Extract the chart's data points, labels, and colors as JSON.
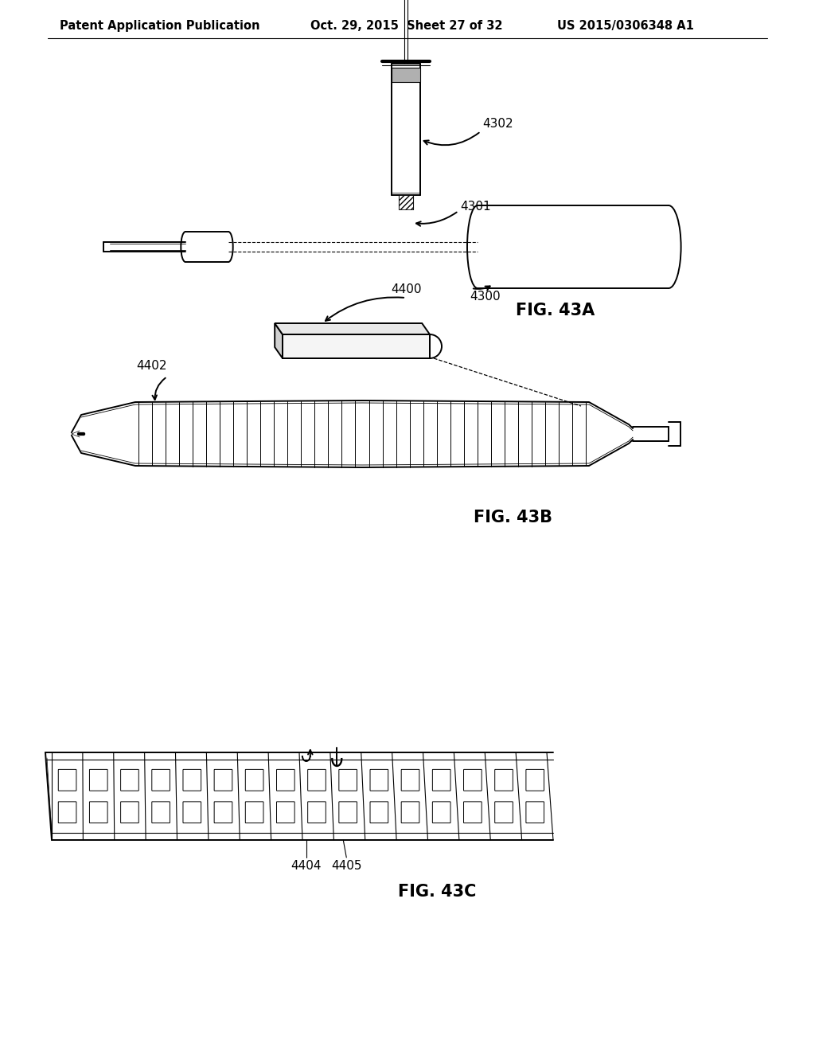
{
  "background_color": "#ffffff",
  "header_left": "Patent Application Publication",
  "header_center": "Oct. 29, 2015  Sheet 27 of 32",
  "header_right": "US 2015/0306348 A1",
  "header_fontsize": 10.5,
  "fig43a_label": "FIG. 43A",
  "fig43b_label": "FIG. 43B",
  "fig43c_label": "FIG. 43C",
  "label_fontsize": 15,
  "ref_fontsize": 11,
  "line_color": "#000000",
  "line_width": 1.4
}
